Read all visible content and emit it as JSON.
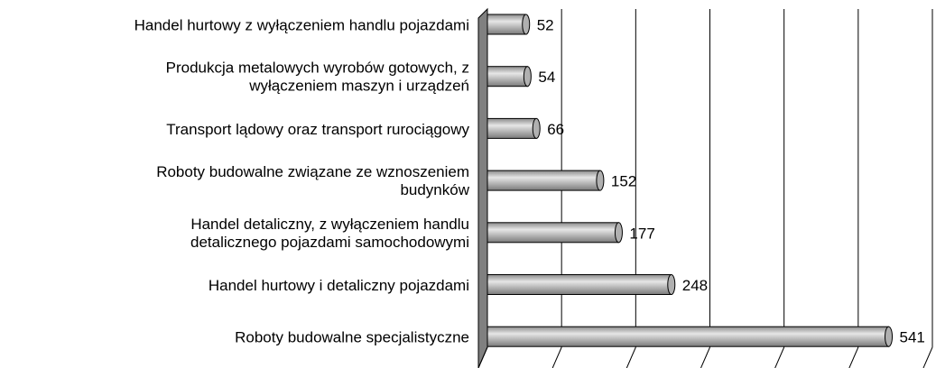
{
  "chart_data": {
    "type": "bar",
    "orientation": "horizontal",
    "categories": [
      "Handel hurtowy z wyłączeniem handlu pojazdami",
      "Produkcja metalowych wyrobów gotowych, z\nwyłączeniem maszyn i urządzeń",
      "Transport lądowy oraz transport rurociągowy",
      "Roboty budowalne związane ze wznoszeniem\nbudynków",
      "Handel detaliczny, z wyłączeniem handlu\ndetalicznego pojazdami samochodowymi",
      "Handel hurtowy i detaliczny pojazdami",
      "Roboty budowalne specjalistyczne"
    ],
    "values": [
      52,
      54,
      66,
      152,
      177,
      248,
      541
    ],
    "color": "#b0b0b0",
    "xlim": [
      0,
      600
    ],
    "xticks": [
      0,
      100,
      200,
      300,
      400,
      500,
      600
    ],
    "grid": true
  }
}
